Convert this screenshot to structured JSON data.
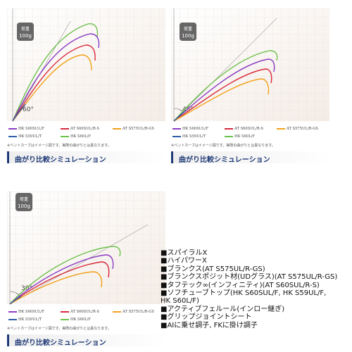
{
  "panels": [
    {
      "angle_label": "60°",
      "badge": [
        "荷重",
        "100g"
      ]
    },
    {
      "angle_label": "45°",
      "badge": [
        "荷重",
        "100g"
      ]
    },
    {
      "angle_label": "30°",
      "badge": [
        "荷重",
        "100g"
      ]
    }
  ],
  "legend": [
    {
      "label": "HK S60SUL/F",
      "color": "#8a3cc2"
    },
    {
      "label": "AT S60SUL/R-S",
      "color": "#d8283a"
    },
    {
      "label": "AT S575UL/R-GS",
      "color": "#f2a21a"
    },
    {
      "label": "HK S59UL/T",
      "color": "#2f5aa8"
    },
    {
      "label": "HK S60L/F",
      "color": "#6cc04a"
    }
  ],
  "note": "※ベントカーブはイメージ図です。実際の曲がりとは異なります。",
  "banner_title": "曲がり比較シミュレーション",
  "features": [
    "■スパイラルX",
    "■ハイパワーX",
    "■ブランクス(AT S575UL/R-GS)",
    "■ブランクスポジット材(UDグラス)(AT S575UL/R-GS)",
    "■タフテック∞(インフィニティ)(AT S60SUL/R-S)",
    "■ソフチューブトップ(HK S60SUL/F, HK S59UL/F,",
    " HK S60L/F)",
    "■アクティブフェルール(インロー継ぎ)",
    "■グリップジョイントシート",
    "■AIに乗せ調子, FKに掛け調子"
  ],
  "icons": {
    "badge": "weight-icon"
  }
}
